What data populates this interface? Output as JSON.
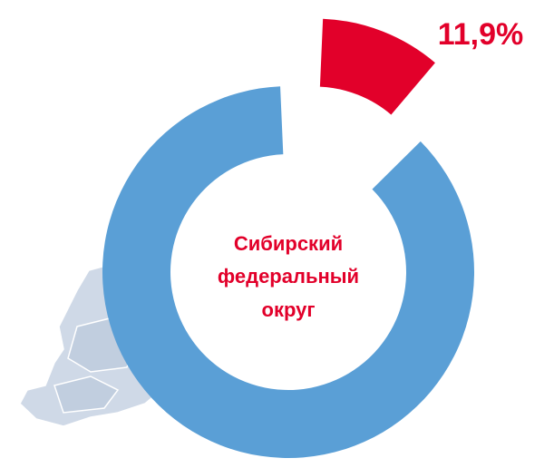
{
  "chart_data": {
    "type": "donut",
    "categories": [
      null,
      null
    ],
    "values": [
      11.9,
      88.1
    ],
    "value_labels": [
      "11,9%",
      null
    ],
    "colors": [
      "#e2002a",
      "#5a9fd6"
    ],
    "center_label": [
      "Сибирский",
      "федеральный",
      "округ"
    ],
    "exploded": [
      true,
      false
    ]
  }
}
